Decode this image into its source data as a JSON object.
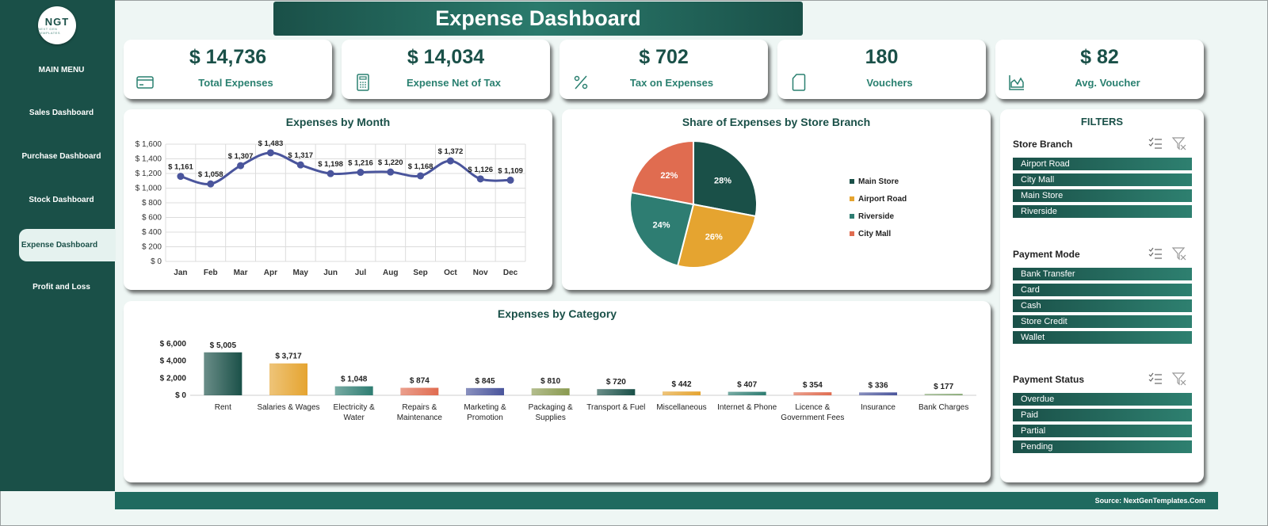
{
  "app": {
    "title": "Expense Dashboard"
  },
  "logo": {
    "text": "NGT",
    "subtext": "NEXT GEN TEMPLATES"
  },
  "sidebar": {
    "menu_title": "MAIN MENU",
    "items": [
      {
        "label": "Sales Dashboard",
        "active": false
      },
      {
        "label": "Purchase Dashboard",
        "active": false
      },
      {
        "label": "Stock Dashboard",
        "active": false
      },
      {
        "label": "Expense Dashboard",
        "active": true
      },
      {
        "label": "Profit and Loss",
        "active": false
      }
    ]
  },
  "kpis": [
    {
      "value": "$ 14,736",
      "label": "Total Expenses",
      "icon": "credit-card-icon"
    },
    {
      "value": "$ 14,034",
      "label": "Expense Net of Tax",
      "icon": "calculator-icon"
    },
    {
      "value": "$ 702",
      "label": "Tax on Expenses",
      "icon": "percent-icon"
    },
    {
      "value": "180",
      "label": "Vouchers",
      "icon": "document-icon"
    },
    {
      "value": "$ 82",
      "label": "Avg. Voucher",
      "icon": "area-chart-icon"
    }
  ],
  "chart_data": [
    {
      "type": "line",
      "title": "Expenses by Month",
      "categories": [
        "Jan",
        "Feb",
        "Mar",
        "Apr",
        "May",
        "Jun",
        "Jul",
        "Aug",
        "Sep",
        "Oct",
        "Nov",
        "Dec"
      ],
      "values": [
        1161,
        1058,
        1307,
        1483,
        1317,
        1198,
        1216,
        1220,
        1168,
        1372,
        1126,
        1109
      ],
      "data_labels": [
        "$ 1,161",
        "$ 1,058",
        "$ 1,307",
        "$ 1,483",
        "$ 1,317",
        "$ 1,198",
        "$ 1,216",
        "$ 1,220",
        "$ 1,168",
        "$ 1,372",
        "$ 1,126",
        "$ 1,109"
      ],
      "ylim": [
        0,
        1600
      ],
      "yticks": [
        0,
        200,
        400,
        600,
        800,
        1000,
        1200,
        1400,
        1600
      ],
      "ytick_labels": [
        "$ 0",
        "$ 200",
        "$ 400",
        "$ 600",
        "$ 800",
        "$ 1,000",
        "$ 1,200",
        "$ 1,400",
        "$ 1,600"
      ],
      "grid": true,
      "color": "#4a559c"
    },
    {
      "type": "pie",
      "title": "Share of Expenses by Store Branch",
      "categories": [
        "Main Store",
        "Airport Road",
        "Riverside",
        "City Mall"
      ],
      "values": [
        28,
        26,
        24,
        22
      ],
      "data_labels": [
        "28%",
        "26%",
        "24%",
        "22%"
      ],
      "colors": [
        "#1a5048",
        "#e5a430",
        "#2e7d72",
        "#e06c50"
      ],
      "legend_position": "right"
    },
    {
      "type": "bar",
      "title": "Expenses by Category",
      "categories": [
        "Rent",
        "Salaries & Wages",
        "Electricity & Water",
        "Repairs & Maintenance",
        "Marketing & Promotion",
        "Packaging & Supplies",
        "Transport & Fuel",
        "Miscellaneous",
        "Internet & Phone",
        "Licence & Government Fees",
        "Insurance",
        "Bank Charges"
      ],
      "category_lines": [
        [
          "Rent"
        ],
        [
          "Salaries & Wages"
        ],
        [
          "Electricity &",
          "Water"
        ],
        [
          "Repairs &",
          "Maintenance"
        ],
        [
          "Marketing &",
          "Promotion"
        ],
        [
          "Packaging &",
          "Supplies"
        ],
        [
          "Transport & Fuel"
        ],
        [
          "Miscellaneous"
        ],
        [
          "Internet & Phone"
        ],
        [
          "Licence &",
          "Government Fees"
        ],
        [
          "Insurance"
        ],
        [
          "Bank Charges"
        ]
      ],
      "values": [
        5005,
        3717,
        1048,
        874,
        845,
        810,
        720,
        442,
        407,
        354,
        336,
        177
      ],
      "data_labels": [
        "$ 5,005",
        "$ 3,717",
        "$ 1,048",
        "$ 874",
        "$ 845",
        "$ 810",
        "$ 720",
        "$ 442",
        "$ 407",
        "$ 354",
        "$ 336",
        "$ 177"
      ],
      "ylim": [
        0,
        6000
      ],
      "yticks": [
        0,
        2000,
        4000,
        6000
      ],
      "ytick_labels": [
        "$ 0",
        "$ 2,000",
        "$ 4,000",
        "$ 6,000"
      ],
      "grid": false,
      "colors": [
        "#1a5048",
        "#e5a430",
        "#2e7d72",
        "#e06c50",
        "#4a559c",
        "#8a9a50",
        "#1a5048",
        "#e5a430",
        "#2e7d72",
        "#e06c50",
        "#4a559c",
        "#8aab78"
      ]
    }
  ],
  "filters": {
    "title": "FILTERS",
    "groups": [
      {
        "heading": "Store Branch",
        "items": [
          "Airport Road",
          "City Mall",
          "Main Store",
          "Riverside"
        ]
      },
      {
        "heading": "Payment Mode",
        "items": [
          "Bank Transfer",
          "Card",
          "Cash",
          "Store Credit",
          "Wallet"
        ]
      },
      {
        "heading": "Payment Status",
        "items": [
          "Overdue",
          "Paid",
          "Partial",
          "Pending"
        ]
      }
    ]
  },
  "footer": {
    "source": "Source: NextGenTemplates.Com"
  }
}
